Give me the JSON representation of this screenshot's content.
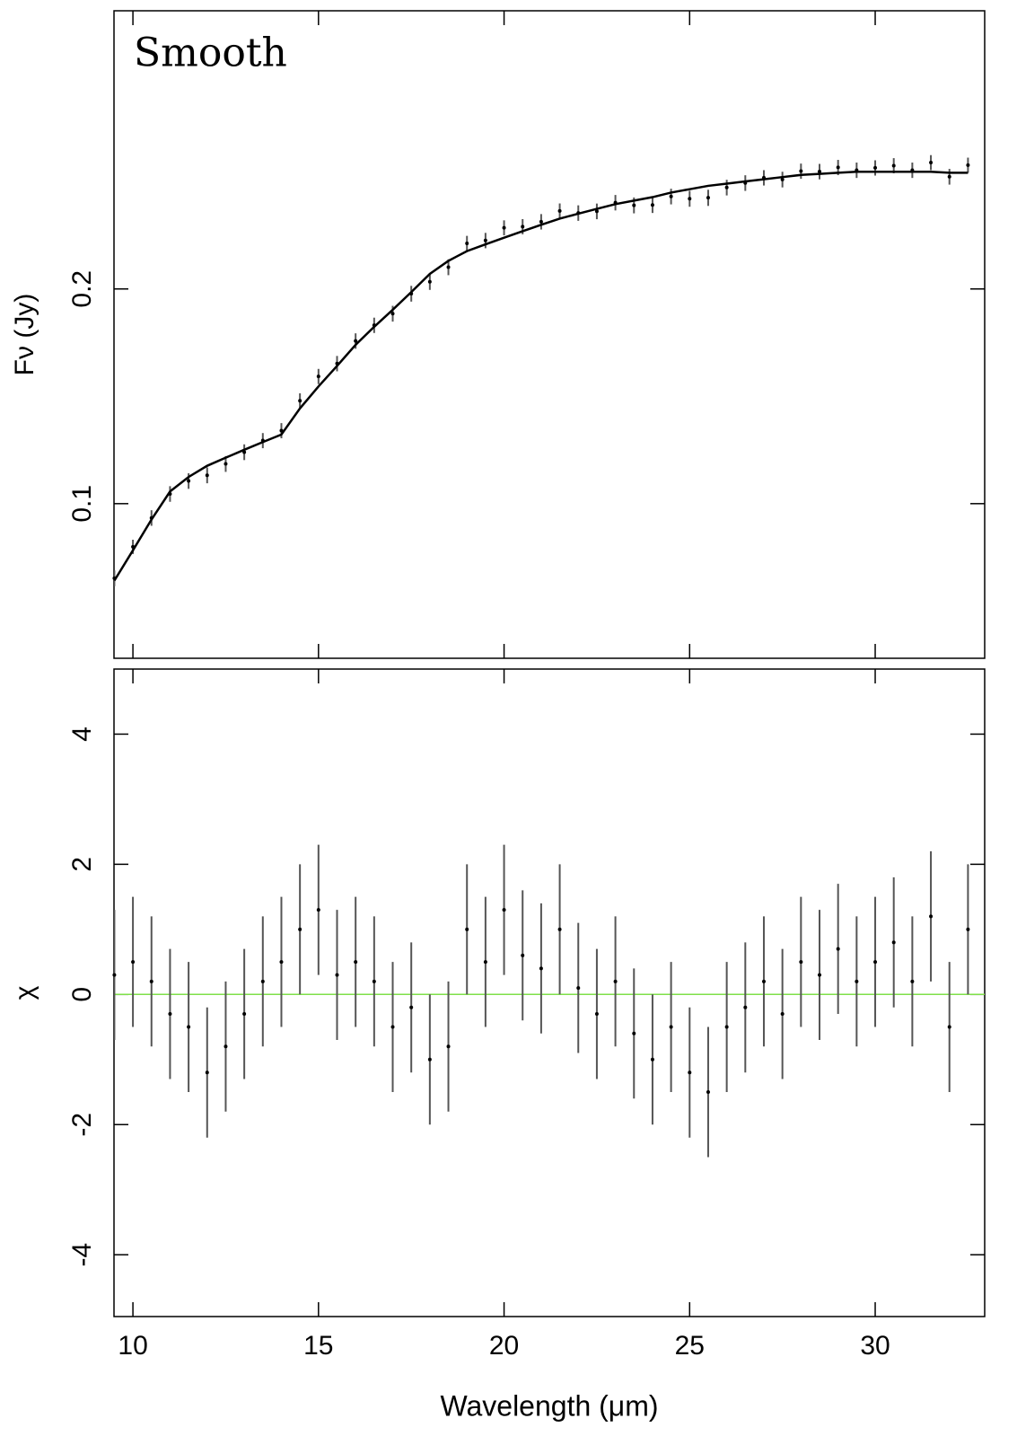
{
  "chart_data": [
    {
      "type": "errorbar",
      "annotation": "Smooth",
      "ylabel": "Fν (Jy)",
      "yscale": "log",
      "x": [
        9.5,
        10,
        10.5,
        11,
        11.5,
        12,
        12.5,
        13,
        13.5,
        14,
        14.5,
        15,
        15.5,
        16,
        16.5,
        17,
        17.5,
        18,
        18.5,
        19,
        19.5,
        20,
        20.5,
        21,
        21.5,
        22,
        22.5,
        23,
        23.5,
        24,
        24.5,
        25,
        25.5,
        26,
        26.5,
        27,
        27.5,
        28,
        28.5,
        29,
        29.5,
        30,
        30.5,
        31,
        31.5,
        32,
        32.5
      ],
      "series": [
        {
          "color": "#555555",
          "style": "errorbar",
          "values": [
            0.0786,
            0.087,
            0.0955,
            0.1032,
            0.1076,
            0.1096,
            0.1137,
            0.1181,
            0.1226,
            0.1266,
            0.1394,
            0.1508,
            0.1572,
            0.1691,
            0.1779,
            0.1847,
            0.197,
            0.2047,
            0.2146,
            0.2317,
            0.2339,
            0.2437,
            0.2446,
            0.2485,
            0.2573,
            0.2556,
            0.257,
            0.2643,
            0.262,
            0.2623,
            0.2696,
            0.2677,
            0.2685,
            0.2775,
            0.2816,
            0.2864,
            0.2848,
            0.2926,
            0.2922,
            0.2961,
            0.2935,
            0.2957,
            0.2978,
            0.2935,
            0.3008,
            0.2874,
            0.2983
          ],
          "errors": [
            0.002,
            0.002,
            0.0024,
            0.0026,
            0.0027,
            0.0028,
            0.0029,
            0.003,
            0.003,
            0.0031,
            0.0034,
            0.0037,
            0.0039,
            0.0042,
            0.0044,
            0.0047,
            0.005,
            0.0053,
            0.0055,
            0.0057,
            0.0058,
            0.0059,
            0.006,
            0.0062,
            0.0063,
            0.0064,
            0.0065,
            0.0066,
            0.0067,
            0.0067,
            0.0068,
            0.0069,
            0.007,
            0.007,
            0.0071,
            0.0071,
            0.0072,
            0.0072,
            0.0073,
            0.0073,
            0.0073,
            0.0073,
            0.0073,
            0.0073,
            0.0073,
            0.0073,
            0.0073
          ]
        },
        {
          "color": "#000000",
          "style": "line",
          "values": [
            0.078,
            0.086,
            0.095,
            0.104,
            0.109,
            0.113,
            0.116,
            0.119,
            0.122,
            0.125,
            0.136,
            0.146,
            0.156,
            0.167,
            0.177,
            0.187,
            0.198,
            0.21,
            0.219,
            0.226,
            0.231,
            0.236,
            0.241,
            0.246,
            0.251,
            0.255,
            0.259,
            0.263,
            0.266,
            0.269,
            0.273,
            0.276,
            0.279,
            0.281,
            0.283,
            0.285,
            0.287,
            0.289,
            0.29,
            0.291,
            0.292,
            0.292,
            0.292,
            0.292,
            0.292,
            0.291,
            0.291
          ]
        }
      ],
      "xlim": [
        9.49,
        32.95
      ],
      "xticks": [
        10,
        15,
        20,
        25,
        30
      ],
      "ylim": [
        0.0607,
        0.491
      ],
      "yticks": [
        0.1,
        0.2
      ]
    },
    {
      "type": "errorbar",
      "ylabel": "χ",
      "xlabel": "Wavelength (μm)",
      "x": [
        9.5,
        10,
        10.5,
        11,
        11.5,
        12,
        12.5,
        13,
        13.5,
        14,
        14.5,
        15,
        15.5,
        16,
        16.5,
        17,
        17.5,
        18,
        18.5,
        19,
        19.5,
        20,
        20.5,
        21,
        21.5,
        22,
        22.5,
        23,
        23.5,
        24,
        24.5,
        25,
        25.5,
        26,
        26.5,
        27,
        27.5,
        28,
        28.5,
        29,
        29.5,
        30,
        30.5,
        31,
        31.5,
        32,
        32.5
      ],
      "series": [
        {
          "color": "#555555",
          "style": "errorbar",
          "values": [
            0.3,
            0.5,
            0.2,
            -0.3,
            -0.5,
            -1.2,
            -0.8,
            -0.3,
            0.2,
            0.5,
            1.0,
            1.3,
            0.3,
            0.5,
            0.2,
            -0.5,
            -0.2,
            -1.0,
            -0.8,
            1.0,
            0.5,
            1.3,
            0.6,
            0.4,
            1.0,
            0.1,
            -0.3,
            0.2,
            -0.6,
            -1.0,
            -0.5,
            -1.2,
            -1.5,
            -0.5,
            -0.2,
            0.2,
            -0.3,
            0.5,
            0.3,
            0.7,
            0.2,
            0.5,
            0.8,
            0.2,
            1.2,
            -0.5,
            1.0
          ],
          "errors": [
            1,
            1,
            1,
            1,
            1,
            1,
            1,
            1,
            1,
            1,
            1,
            1,
            1,
            1,
            1,
            1,
            1,
            1,
            1,
            1,
            1,
            1,
            1,
            1,
            1,
            1,
            1,
            1,
            1,
            1,
            1,
            1,
            1,
            1,
            1,
            1,
            1,
            1,
            1,
            1,
            1,
            1,
            1,
            1,
            1,
            1,
            1
          ]
        }
      ],
      "reference_line": {
        "value": 0,
        "color": "#7fe04a"
      },
      "xlim": [
        9.49,
        32.95
      ],
      "xticks": [
        10,
        15,
        20,
        25,
        30
      ],
      "ylim": [
        -4.95,
        5
      ],
      "yticks": [
        -4,
        -2,
        0,
        2,
        4
      ]
    }
  ]
}
